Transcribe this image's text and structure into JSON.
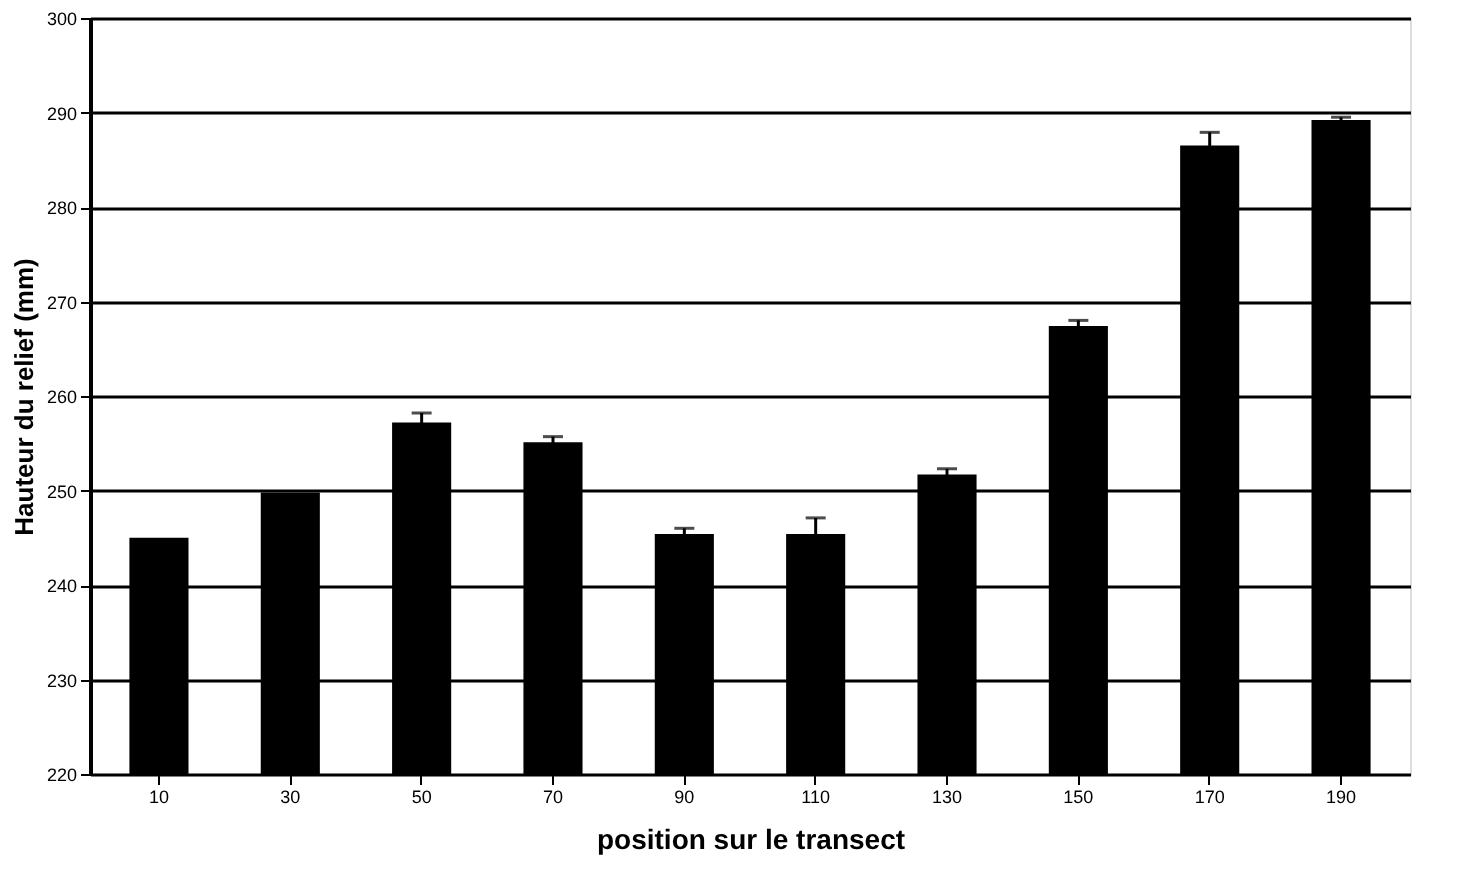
{
  "chart_data": {
    "type": "bar",
    "xlabel": "position sur le transect",
    "ylabel": "Hauteur du relief (mm)",
    "categories": [
      "10",
      "30",
      "50",
      "70",
      "90",
      "110",
      "130",
      "150",
      "170",
      "190"
    ],
    "values": [
      245.0,
      249.8,
      257.2,
      255.1,
      245.4,
      245.4,
      251.7,
      267.4,
      286.5,
      289.2
    ],
    "errors": [
      null,
      null,
      1.0,
      0.6,
      0.6,
      1.7,
      0.6,
      0.6,
      1.4,
      0.3
    ],
    "color": "#000000",
    "ylim": [
      220,
      300
    ],
    "yticks": [
      220,
      230,
      240,
      250,
      260,
      270,
      280,
      290,
      300
    ],
    "grid": "y"
  }
}
